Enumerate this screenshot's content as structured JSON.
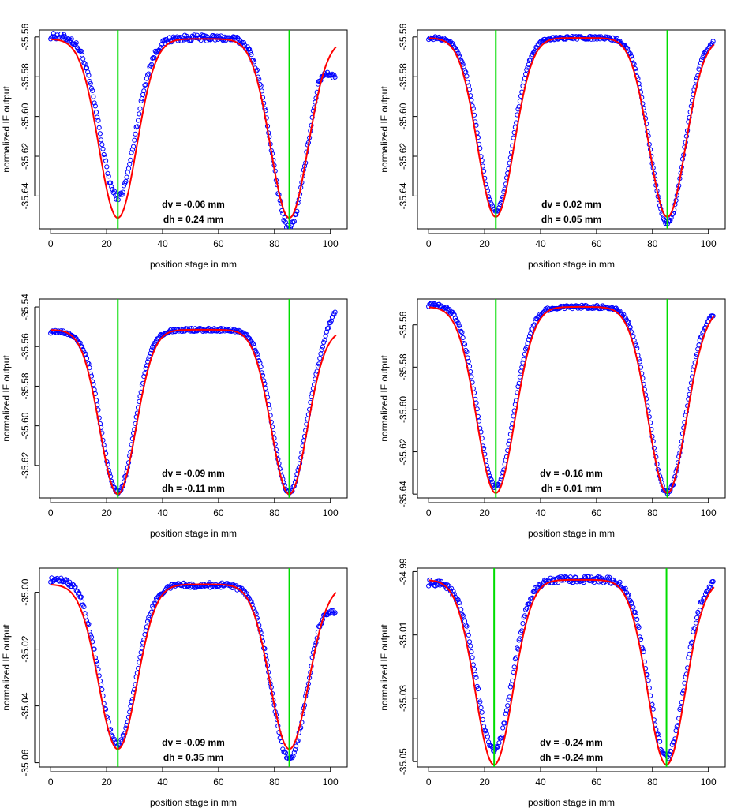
{
  "figure": {
    "background": "#ffffff"
  },
  "colors": {
    "points": "#0000ff",
    "fit": "#ff0000",
    "markers": "#00dd00",
    "axes": "#000000"
  },
  "chart_data": [
    {
      "type": "scatter",
      "xlabel": "position stage in mm",
      "ylabel": "normalized IF output",
      "xlim": [
        -4,
        106
      ],
      "ylim": [
        -35.6565,
        -35.5565
      ],
      "xticks": [
        0,
        20,
        40,
        60,
        80,
        100
      ],
      "yticks": [
        -35.56,
        -35.58,
        -35.6,
        -35.62,
        -35.64
      ],
      "ytick_labels": [
        "-35.56",
        "-35.58",
        "-35.60",
        "-35.62",
        "-35.64"
      ],
      "markers_x": [
        24,
        85.3
      ],
      "fit": {
        "baseline": -35.561,
        "dip1": {
          "center": 24,
          "depth": 0.09,
          "width": 6.7
        },
        "dip2": {
          "center": 85.3,
          "depth": 0.09,
          "width": 6.7
        }
      },
      "data_shape": {
        "baseline_left": -35.5595,
        "baseline_mid": -35.5605,
        "dip1_min": -35.6405,
        "dip2_min": -35.6555,
        "right_end": -35.579,
        "wobble": 0.0015
      },
      "annotation": [
        "dv = -0.06 mm",
        "dh = 0.24 mm"
      ],
      "grid": false
    },
    {
      "type": "scatter",
      "xlabel": "position stage in mm",
      "ylabel": "normalized IF output",
      "xlim": [
        -4,
        106
      ],
      "ylim": [
        -35.6565,
        -35.5565
      ],
      "xticks": [
        0,
        20,
        40,
        60,
        80,
        100
      ],
      "yticks": [
        -35.56,
        -35.58,
        -35.6,
        -35.62,
        -35.64
      ],
      "ytick_labels": [
        "-35.56",
        "-35.58",
        "-35.60",
        "-35.62",
        "-35.64"
      ],
      "markers_x": [
        24,
        85.3
      ],
      "fit": {
        "baseline": -35.5605,
        "dip1": {
          "center": 24,
          "depth": 0.09,
          "width": 6.5
        },
        "dip2": {
          "center": 85.3,
          "depth": 0.09,
          "width": 6.5
        }
      },
      "data_shape": {
        "baseline_left": -35.5605,
        "baseline_mid": -35.5605,
        "dip1_min": -35.6475,
        "dip2_min": -35.6535,
        "right_end": -35.5605,
        "wobble": 0.0008
      },
      "annotation": [
        "dv = 0.02 mm",
        "dh = 0.05 mm"
      ],
      "grid": false
    },
    {
      "type": "scatter",
      "xlabel": "position stage in mm",
      "ylabel": "normalized IF output",
      "xlim": [
        -4,
        106
      ],
      "ylim": [
        -35.6364,
        -35.536
      ],
      "xticks": [
        0,
        20,
        40,
        60,
        80,
        100
      ],
      "yticks": [
        -35.54,
        -35.56,
        -35.58,
        -35.6,
        -35.62
      ],
      "ytick_labels": [
        "-35.54",
        "-35.56",
        "-35.58",
        "-35.60",
        "-35.62"
      ],
      "markers_x": [
        24,
        85.3
      ],
      "fit": {
        "baseline": -35.5515,
        "dip1": {
          "center": 24,
          "depth": 0.083,
          "width": 6.4
        },
        "dip2": {
          "center": 85.3,
          "depth": 0.083,
          "width": 6.4
        }
      },
      "data_shape": {
        "baseline_left": -35.5525,
        "baseline_mid": -35.5515,
        "dip1_min": -35.6335,
        "dip2_min": -35.6335,
        "right_end": -35.5395,
        "wobble": 0.0008
      },
      "annotation": [
        "dv = -0.09 mm",
        "dh = -0.11 mm"
      ],
      "grid": false
    },
    {
      "type": "scatter",
      "xlabel": "position stage in mm",
      "ylabel": "normalized IF output",
      "xlim": [
        -4,
        106
      ],
      "ylim": [
        -35.6418,
        -35.5478
      ],
      "xticks": [
        0,
        20,
        40,
        60,
        80,
        100
      ],
      "yticks": [
        -35.56,
        -35.58,
        -35.6,
        -35.62,
        -35.64
      ],
      "ytick_labels": [
        "-35.56",
        "-35.58",
        "-35.60",
        "-35.62",
        "-35.64"
      ],
      "markers_x": [
        24,
        85.3
      ],
      "fit": {
        "baseline": -35.5515,
        "dip1": {
          "center": 24,
          "depth": 0.088,
          "width": 6.8
        },
        "dip2": {
          "center": 85.3,
          "depth": 0.088,
          "width": 6.8
        }
      },
      "data_shape": {
        "baseline_left": -35.5505,
        "baseline_mid": -35.5515,
        "dip1_min": -35.6365,
        "dip2_min": -35.6395,
        "right_end": -35.5525,
        "wobble": 0.0008
      },
      "annotation": [
        "dv = -0.16 mm",
        "dh = 0.01 mm"
      ],
      "grid": false
    },
    {
      "type": "scatter",
      "xlabel": "position stage in mm",
      "ylabel": "normalized IF output",
      "xlim": [
        -4,
        106
      ],
      "ylim": [
        -35.0615,
        -34.9915
      ],
      "xticks": [
        0,
        20,
        40,
        60,
        80,
        100
      ],
      "yticks": [
        -35.0,
        -35.02,
        -35.04,
        -35.06
      ],
      "ytick_labels": [
        "-35.00",
        "-35.02",
        "-35.04",
        "-35.06"
      ],
      "markers_x": [
        24,
        85.3
      ],
      "fit": {
        "baseline": -34.9972,
        "dip1": {
          "center": 24,
          "depth": 0.058,
          "width": 6.8
        },
        "dip2": {
          "center": 85.3,
          "depth": 0.058,
          "width": 6.8
        }
      },
      "data_shape": {
        "baseline_left": -34.9955,
        "baseline_mid": -34.9975,
        "dip1_min": -35.0535,
        "dip2_min": -35.0585,
        "right_end": -35.0055,
        "wobble": 0.0009
      },
      "annotation": [
        "dv = -0.09 mm",
        "dh = 0.35 mm"
      ],
      "grid": false
    },
    {
      "type": "scatter",
      "xlabel": "position stage in mm",
      "ylabel": "normalized IF output",
      "xlim": [
        -4,
        106
      ],
      "ylim": [
        -35.0517,
        -34.9889
      ],
      "xticks": [
        0,
        20,
        40,
        60,
        80,
        100
      ],
      "yticks": [
        -34.99,
        -35.01,
        -35.03,
        -35.05
      ],
      "ytick_labels": [
        "-34.99",
        "-35.01",
        "-35.03",
        "-35.05"
      ],
      "markers_x": [
        23.4,
        85.0
      ],
      "fit": {
        "baseline": -34.9926,
        "dip1": {
          "center": 23.4,
          "depth": 0.0584,
          "width": 6.7
        },
        "dip2": {
          "center": 85.0,
          "depth": 0.0584,
          "width": 6.7
        }
      },
      "data_shape": {
        "baseline_left": -34.9935,
        "baseline_mid": -34.9925,
        "dip1_min": -35.0465,
        "dip2_min": -35.0485,
        "right_end": -34.992,
        "wobble": 0.001
      },
      "annotation": [
        "dv = -0.24 mm",
        "dh = -0.24 mm"
      ],
      "grid": false
    }
  ]
}
